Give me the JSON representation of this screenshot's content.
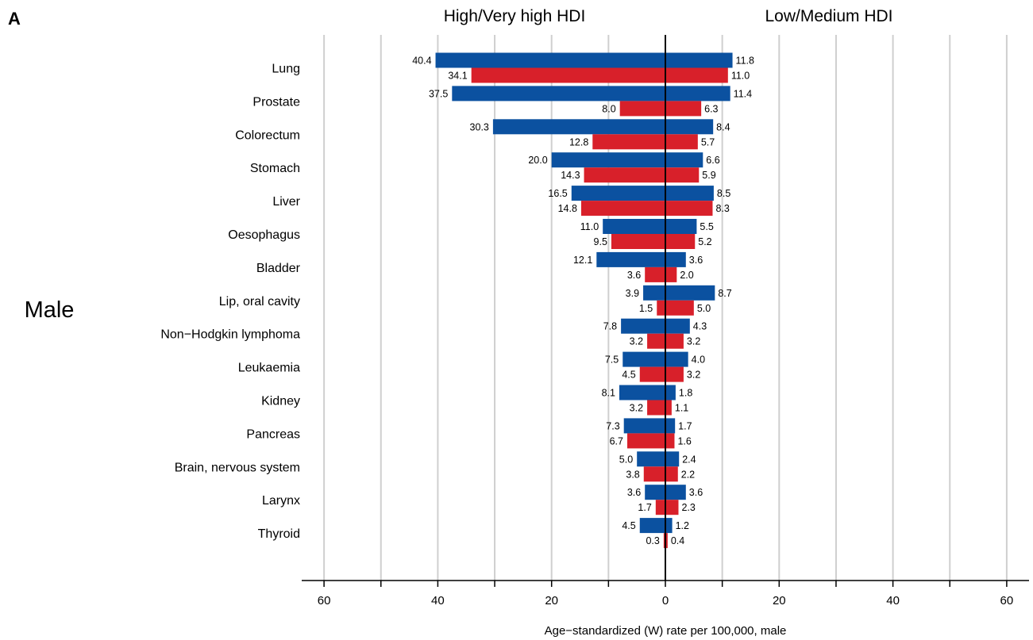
{
  "panel_label": "A",
  "side_label": "Male",
  "chart_data": {
    "type": "bar",
    "orientation": "horizontal-diverging",
    "left_title": "High/Very high HDI",
    "right_title": "Low/Medium HDI",
    "xlabel": "Age−standardized (W) rate per 100,000, male",
    "xlim": [
      -60,
      60
    ],
    "x_ticks": [
      -60,
      -40,
      -20,
      0,
      20,
      40,
      60
    ],
    "x_tick_labels": [
      "60",
      "40",
      "20",
      "0",
      "20",
      "40",
      "60"
    ],
    "grid": true,
    "colors": {
      "incidence": "#0b51a0",
      "mortality": "#d8202a"
    },
    "categories": [
      "Lung",
      "Prostate",
      "Colorectum",
      "Stomach",
      "Liver",
      "Oesophagus",
      "Bladder",
      "Lip, oral cavity",
      "Non−Hodgkin lymphoma",
      "Leukaemia",
      "Kidney",
      "Pancreas",
      "Brain, nervous system",
      "Larynx",
      "Thyroid"
    ],
    "high_hdi": {
      "blue": [
        40.4,
        37.5,
        30.3,
        20.0,
        16.5,
        11.0,
        12.1,
        3.9,
        7.8,
        7.5,
        8.1,
        7.3,
        5.0,
        3.6,
        4.5
      ],
      "red": [
        34.1,
        8.0,
        12.8,
        14.3,
        14.8,
        9.5,
        3.6,
        1.5,
        3.2,
        4.5,
        3.2,
        6.7,
        3.8,
        1.7,
        0.3
      ]
    },
    "low_hdi": {
      "blue": [
        11.8,
        11.4,
        8.4,
        6.6,
        8.5,
        5.5,
        3.6,
        8.7,
        4.3,
        4.0,
        1.8,
        1.7,
        2.4,
        3.6,
        1.2
      ],
      "red": [
        11.0,
        6.3,
        5.7,
        5.9,
        8.3,
        5.2,
        2.0,
        5.0,
        3.2,
        3.2,
        1.1,
        1.6,
        2.2,
        2.3,
        0.4
      ]
    },
    "high_hdi_labels": {
      "blue": [
        "40.4",
        "37.5",
        "30.3",
        "20.0",
        "16.5",
        "11.0",
        "12.1",
        "3.9",
        "7.8",
        "7.5",
        "8.1",
        "7.3",
        "5.0",
        "3.6",
        "4.5"
      ],
      "red": [
        "34.1",
        "8.0",
        "12.8",
        "14.3",
        "14.8",
        "9.5",
        "3.6",
        "1.5",
        "3.2",
        "4.5",
        "3.2",
        "6.7",
        "3.8",
        "1.7",
        "0.3"
      ]
    },
    "low_hdi_labels": {
      "blue": [
        "11.8",
        "11.4",
        "8.4",
        "6.6",
        "8.5",
        "5.5",
        "3.6",
        "8.7",
        "4.3",
        "4.0",
        "1.8",
        "1.7",
        "2.4",
        "3.6",
        "1.2"
      ],
      "red": [
        "11.0",
        "6.3",
        "5.7",
        "5.9",
        "8.3",
        "5.2",
        "2.0",
        "5.0",
        "3.2",
        "3.2",
        "1.1",
        "1.6",
        "2.2",
        "2.3",
        "0.4"
      ]
    }
  }
}
